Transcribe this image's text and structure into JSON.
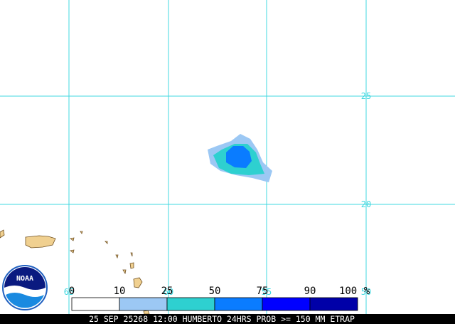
{
  "map": {
    "title": "25 SEP 25268 12:00 HUMBERTO 24HRS PROB >= 150 MM ETRAP",
    "lat_labels": [
      "25",
      "20"
    ],
    "lon_labels": [
      "65",
      "60",
      "55",
      "50"
    ],
    "legend": {
      "ticks": [
        0,
        10,
        25,
        50,
        75,
        90,
        100
      ],
      "unit": "%",
      "colors": [
        "#ffffff",
        "#9cc8f4",
        "#2ed0d0",
        "#0a7cff",
        "#0000ff",
        "#0000a8"
      ]
    },
    "logo": "NOAA"
  }
}
